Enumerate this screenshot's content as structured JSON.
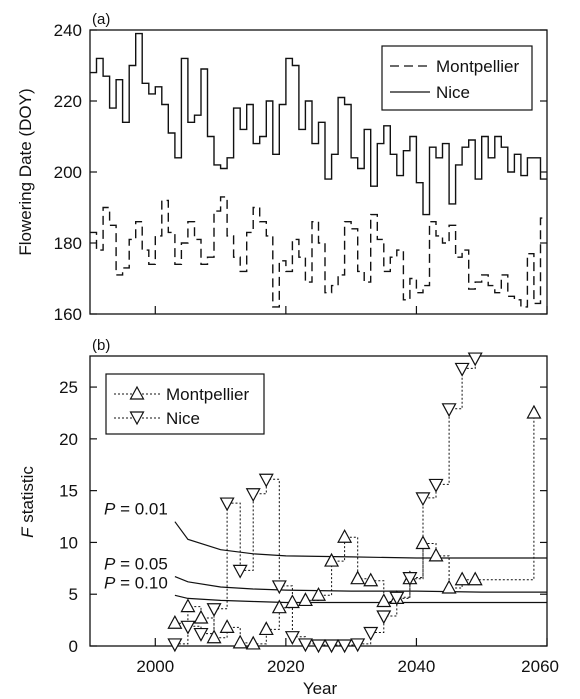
{
  "chart_data": [
    {
      "panel_label": "(a)",
      "type": "line",
      "step": true,
      "ylabel": "Flowering Date (DOY)",
      "xlim": [
        1990,
        2060
      ],
      "ylim": [
        160,
        240
      ],
      "yticks": [
        160,
        180,
        200,
        220,
        240
      ],
      "xticks": [
        2000,
        2020,
        2040,
        2060
      ],
      "x_tick_labels_shown": false,
      "grid": false,
      "legend_position": "top-right",
      "x": [
        1990,
        1991,
        1992,
        1993,
        1994,
        1995,
        1996,
        1997,
        1998,
        1999,
        2000,
        2001,
        2002,
        2003,
        2004,
        2005,
        2006,
        2007,
        2008,
        2009,
        2010,
        2011,
        2012,
        2013,
        2014,
        2015,
        2016,
        2017,
        2018,
        2019,
        2020,
        2021,
        2022,
        2023,
        2024,
        2025,
        2026,
        2027,
        2028,
        2029,
        2030,
        2031,
        2032,
        2033,
        2034,
        2035,
        2036,
        2037,
        2038,
        2039,
        2040,
        2041,
        2042,
        2043,
        2044,
        2045,
        2046,
        2047,
        2048,
        2049,
        2050,
        2051,
        2052,
        2053,
        2054,
        2055,
        2056,
        2057,
        2058,
        2059
      ],
      "series": [
        {
          "name": "Montpellier",
          "dash": "dashed",
          "values": [
            183,
            178,
            190,
            185,
            171,
            173,
            181,
            186,
            178,
            174,
            182,
            192,
            183,
            174,
            180,
            186,
            181,
            174,
            176,
            189,
            193,
            182,
            176,
            172,
            183,
            190,
            186,
            182,
            162,
            175,
            172,
            181,
            176,
            169,
            186,
            180,
            166,
            168,
            171,
            186,
            184,
            172,
            169,
            188,
            181,
            172,
            176,
            178,
            164,
            170,
            166,
            168,
            186,
            182,
            180,
            185,
            176,
            178,
            167,
            169,
            171,
            168,
            166,
            171,
            165,
            164,
            162,
            177,
            163,
            187
          ]
        },
        {
          "name": "Nice",
          "dash": "solid",
          "values": [
            228,
            232,
            227,
            218,
            226,
            214,
            230,
            239,
            225,
            222,
            224,
            219,
            211,
            204,
            232,
            214,
            216,
            229,
            210,
            202,
            201,
            204,
            218,
            212,
            219,
            208,
            210,
            220,
            205,
            219,
            232,
            230,
            212,
            220,
            208,
            214,
            198,
            205,
            221,
            219,
            204,
            201,
            212,
            196,
            208,
            213,
            205,
            199,
            206,
            210,
            197,
            188,
            207,
            204,
            208,
            191,
            202,
            207,
            209,
            198,
            210,
            204,
            210,
            207,
            200,
            205,
            199,
            204,
            204,
            198
          ]
        }
      ]
    },
    {
      "panel_label": "(b)",
      "type": "line",
      "step": true,
      "markers": true,
      "xlabel": "Year",
      "ylabel_italic": "F",
      "ylabel_rest": " statistic",
      "xlim": [
        1990,
        2060
      ],
      "ylim": [
        0,
        28
      ],
      "yticks": [
        0,
        5,
        10,
        15,
        20,
        25
      ],
      "xticks": [
        2000,
        2020,
        2040,
        2060
      ],
      "grid": false,
      "legend_position": "top-left",
      "series": [
        {
          "name": "Montpellier",
          "marker": "triangle-up",
          "x": [
            2003,
            2005,
            2007,
            2009,
            2011,
            2013,
            2015,
            2017,
            2019,
            2021,
            2023,
            2025,
            2027,
            2029,
            2031,
            2033,
            2035,
            2037,
            2039,
            2041,
            2043,
            2045,
            2047,
            2049,
            2058
          ],
          "values": [
            2.2,
            3.8,
            2.7,
            0.8,
            1.8,
            0.3,
            0.2,
            1.6,
            3.7,
            4.2,
            4.4,
            4.9,
            8.2,
            10.5,
            6.5,
            6.3,
            4.3,
            4.6,
            6.5,
            9.9,
            8.7,
            5.6,
            6.4,
            6.4,
            22.5
          ]
        },
        {
          "name": "Nice",
          "marker": "triangle-down",
          "x": [
            2003,
            2005,
            2007,
            2009,
            2011,
            2013,
            2015,
            2017,
            2019,
            2021,
            2023,
            2025,
            2027,
            2029,
            2031,
            2033,
            2035,
            2037,
            2039,
            2041,
            2043,
            2045,
            2047,
            2049
          ],
          "values": [
            0.2,
            1.9,
            1.2,
            3.6,
            13.8,
            7.3,
            14.7,
            16.1,
            5.8,
            0.9,
            0.2,
            0.1,
            0.1,
            0.1,
            0.2,
            1.3,
            2.9,
            4.7,
            6.6,
            14.3,
            15.6,
            22.9,
            26.8,
            27.8
          ]
        }
      ],
      "reference_curves": [
        {
          "label_italic": "P",
          "label_rest": " = 0.01",
          "x": [
            2003,
            2005,
            2010,
            2015,
            2020,
            2030,
            2040,
            2050,
            2060
          ],
          "values": [
            12.0,
            10.3,
            9.3,
            8.9,
            8.7,
            8.6,
            8.5,
            8.5,
            8.5
          ]
        },
        {
          "label_italic": "P",
          "label_rest": " = 0.05",
          "x": [
            2003,
            2005,
            2010,
            2015,
            2020,
            2030,
            2040,
            2050,
            2060
          ],
          "values": [
            6.7,
            6.2,
            5.7,
            5.5,
            5.4,
            5.3,
            5.3,
            5.2,
            5.2
          ]
        },
        {
          "label_italic": "P",
          "label_rest": " = 0.10",
          "x": [
            2003,
            2005,
            2010,
            2015,
            2020,
            2030,
            2040,
            2050,
            2060
          ],
          "values": [
            4.9,
            4.6,
            4.4,
            4.3,
            4.2,
            4.2,
            4.2,
            4.2,
            4.2
          ]
        }
      ]
    }
  ]
}
